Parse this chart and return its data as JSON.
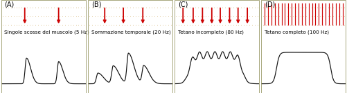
{
  "panels": [
    "A",
    "B",
    "C",
    "D"
  ],
  "labels": [
    "Singole scosse del muscolo (5 Hz)",
    "Sommazione temporale (20 Hz)",
    "Tetano incompleto (80 Hz)",
    "Tetano completo (100 Hz)"
  ],
  "bg_color": "#96b872",
  "top_color": "#debb78",
  "border_color": "#999966",
  "line_color": "#111111",
  "arrow_color": "#cc0000",
  "label_fontsize": 5.2,
  "panel_label_fontsize": 7.0,
  "fig_width": 5.01,
  "fig_height": 1.35,
  "dpi": 100
}
